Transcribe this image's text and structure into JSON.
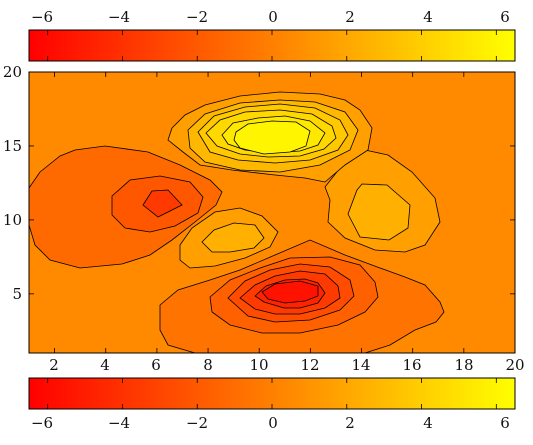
{
  "chart_data": {
    "type": "contour",
    "title": "",
    "xlabel": "",
    "ylabel": "",
    "xlim": [
      1,
      20
    ],
    "ylim": [
      1,
      20
    ],
    "x_ticks": [
      2,
      4,
      6,
      8,
      10,
      12,
      14,
      16,
      18,
      20
    ],
    "y_ticks": [
      5,
      10,
      15,
      20
    ],
    "colorbar": {
      "range": [
        -6.5,
        6.5
      ],
      "ticks": [
        "−6",
        "−4",
        "−2",
        "0",
        "2",
        "4",
        "6"
      ],
      "tick_values": [
        -6,
        -4,
        -2,
        0,
        2,
        4,
        6
      ],
      "colormap": [
        "#ff0000",
        "#ff8000",
        "#ffff00"
      ],
      "placement": [
        "top",
        "bottom"
      ]
    },
    "background_level": 0,
    "levels_step": 1,
    "features": [
      {
        "name": "peak",
        "center": [
          10.5,
          15.5
        ],
        "max": 6
      },
      {
        "name": "trough",
        "center": [
          11,
          5.5
        ],
        "min": -6
      },
      {
        "name": "trough",
        "center": [
          6,
          11
        ],
        "min": -4
      },
      {
        "name": "peak",
        "center": [
          9.5,
          8.5
        ],
        "max": 2
      },
      {
        "name": "peak",
        "center": [
          14.5,
          10.5
        ],
        "max": 2
      }
    ]
  }
}
